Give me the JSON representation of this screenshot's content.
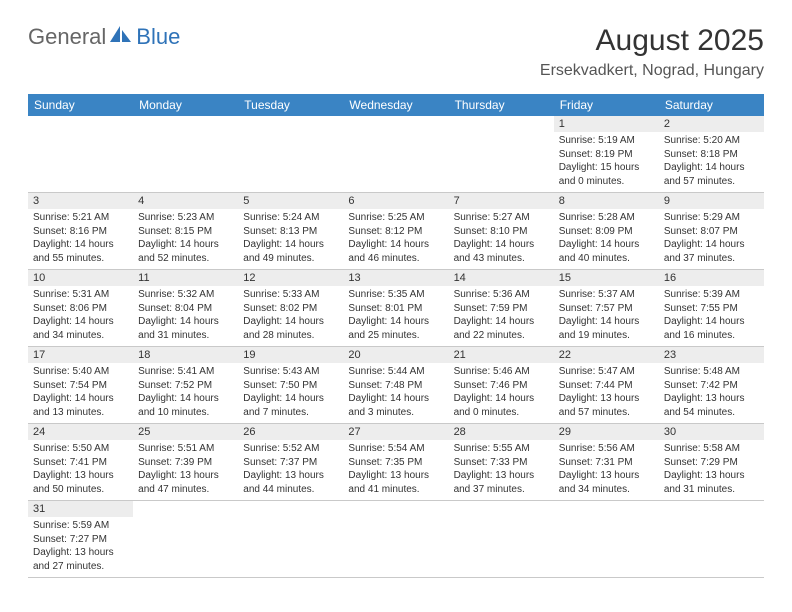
{
  "logo": {
    "general": "General",
    "blue": "Blue"
  },
  "title": "August 2025",
  "location": "Ersekvadkert, Nograd, Hungary",
  "weekdays": [
    "Sunday",
    "Monday",
    "Tuesday",
    "Wednesday",
    "Thursday",
    "Friday",
    "Saturday"
  ],
  "colors": {
    "header_bg": "#3a84c4",
    "header_text": "#ffffff",
    "daynum_bg": "#ededed",
    "border": "#c9c9c9",
    "text": "#333333",
    "logo_blue": "#2f73b8",
    "logo_gray": "#666666"
  },
  "fonts": {
    "title_size_pt": 22,
    "location_size_pt": 12,
    "weekday_size_pt": 9,
    "daynum_size_pt": 8,
    "body_size_pt": 7.5,
    "family": "Arial"
  },
  "weeks": [
    [
      null,
      null,
      null,
      null,
      null,
      {
        "n": "1",
        "sr": "5:19 AM",
        "ss": "8:19 PM",
        "dl": "15 hours and 0 minutes."
      },
      {
        "n": "2",
        "sr": "5:20 AM",
        "ss": "8:18 PM",
        "dl": "14 hours and 57 minutes."
      }
    ],
    [
      {
        "n": "3",
        "sr": "5:21 AM",
        "ss": "8:16 PM",
        "dl": "14 hours and 55 minutes."
      },
      {
        "n": "4",
        "sr": "5:23 AM",
        "ss": "8:15 PM",
        "dl": "14 hours and 52 minutes."
      },
      {
        "n": "5",
        "sr": "5:24 AM",
        "ss": "8:13 PM",
        "dl": "14 hours and 49 minutes."
      },
      {
        "n": "6",
        "sr": "5:25 AM",
        "ss": "8:12 PM",
        "dl": "14 hours and 46 minutes."
      },
      {
        "n": "7",
        "sr": "5:27 AM",
        "ss": "8:10 PM",
        "dl": "14 hours and 43 minutes."
      },
      {
        "n": "8",
        "sr": "5:28 AM",
        "ss": "8:09 PM",
        "dl": "14 hours and 40 minutes."
      },
      {
        "n": "9",
        "sr": "5:29 AM",
        "ss": "8:07 PM",
        "dl": "14 hours and 37 minutes."
      }
    ],
    [
      {
        "n": "10",
        "sr": "5:31 AM",
        "ss": "8:06 PM",
        "dl": "14 hours and 34 minutes."
      },
      {
        "n": "11",
        "sr": "5:32 AM",
        "ss": "8:04 PM",
        "dl": "14 hours and 31 minutes."
      },
      {
        "n": "12",
        "sr": "5:33 AM",
        "ss": "8:02 PM",
        "dl": "14 hours and 28 minutes."
      },
      {
        "n": "13",
        "sr": "5:35 AM",
        "ss": "8:01 PM",
        "dl": "14 hours and 25 minutes."
      },
      {
        "n": "14",
        "sr": "5:36 AM",
        "ss": "7:59 PM",
        "dl": "14 hours and 22 minutes."
      },
      {
        "n": "15",
        "sr": "5:37 AM",
        "ss": "7:57 PM",
        "dl": "14 hours and 19 minutes."
      },
      {
        "n": "16",
        "sr": "5:39 AM",
        "ss": "7:55 PM",
        "dl": "14 hours and 16 minutes."
      }
    ],
    [
      {
        "n": "17",
        "sr": "5:40 AM",
        "ss": "7:54 PM",
        "dl": "14 hours and 13 minutes."
      },
      {
        "n": "18",
        "sr": "5:41 AM",
        "ss": "7:52 PM",
        "dl": "14 hours and 10 minutes."
      },
      {
        "n": "19",
        "sr": "5:43 AM",
        "ss": "7:50 PM",
        "dl": "14 hours and 7 minutes."
      },
      {
        "n": "20",
        "sr": "5:44 AM",
        "ss": "7:48 PM",
        "dl": "14 hours and 3 minutes."
      },
      {
        "n": "21",
        "sr": "5:46 AM",
        "ss": "7:46 PM",
        "dl": "14 hours and 0 minutes."
      },
      {
        "n": "22",
        "sr": "5:47 AM",
        "ss": "7:44 PM",
        "dl": "13 hours and 57 minutes."
      },
      {
        "n": "23",
        "sr": "5:48 AM",
        "ss": "7:42 PM",
        "dl": "13 hours and 54 minutes."
      }
    ],
    [
      {
        "n": "24",
        "sr": "5:50 AM",
        "ss": "7:41 PM",
        "dl": "13 hours and 50 minutes."
      },
      {
        "n": "25",
        "sr": "5:51 AM",
        "ss": "7:39 PM",
        "dl": "13 hours and 47 minutes."
      },
      {
        "n": "26",
        "sr": "5:52 AM",
        "ss": "7:37 PM",
        "dl": "13 hours and 44 minutes."
      },
      {
        "n": "27",
        "sr": "5:54 AM",
        "ss": "7:35 PM",
        "dl": "13 hours and 41 minutes."
      },
      {
        "n": "28",
        "sr": "5:55 AM",
        "ss": "7:33 PM",
        "dl": "13 hours and 37 minutes."
      },
      {
        "n": "29",
        "sr": "5:56 AM",
        "ss": "7:31 PM",
        "dl": "13 hours and 34 minutes."
      },
      {
        "n": "30",
        "sr": "5:58 AM",
        "ss": "7:29 PM",
        "dl": "13 hours and 31 minutes."
      }
    ],
    [
      {
        "n": "31",
        "sr": "5:59 AM",
        "ss": "7:27 PM",
        "dl": "13 hours and 27 minutes."
      },
      null,
      null,
      null,
      null,
      null,
      null
    ]
  ],
  "labels": {
    "sunrise": "Sunrise: ",
    "sunset": "Sunset: ",
    "daylight": "Daylight: "
  }
}
